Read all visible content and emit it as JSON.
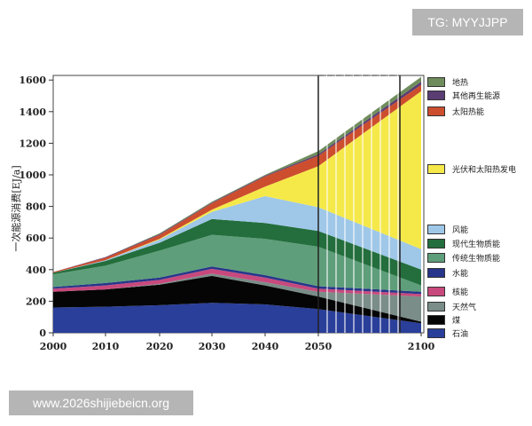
{
  "watermark_top": "TG: MYYJJPP",
  "watermark_bottom": "www.2026shijiebeicn.org",
  "chart_data": {
    "type": "area",
    "stacked": true,
    "title": "",
    "ylabel": "一次能源消费[EJ/a]",
    "xlabel": "",
    "x": [
      2000,
      2010,
      2020,
      2030,
      2040,
      2050,
      2100
    ],
    "x_ticks": [
      "2000",
      "2010",
      "2020",
      "2030",
      "2040",
      "2050",
      "2100"
    ],
    "ylim": [
      0,
      1600
    ],
    "y_ticks": [
      "0",
      "200",
      "400",
      "600",
      "800",
      "1000",
      "1200",
      "1400",
      "1600"
    ],
    "series": [
      {
        "name": "石油",
        "color": "#2a3f9a",
        "values": [
          160,
          165,
          175,
          190,
          180,
          150,
          60
        ]
      },
      {
        "name": "煤",
        "color": "#050505",
        "values": [
          100,
          110,
          130,
          170,
          120,
          80,
          10
        ]
      },
      {
        "name": "天然气",
        "color": "#7a8d88",
        "values": [
          0,
          0,
          5,
          15,
          20,
          30,
          160
        ]
      },
      {
        "name": "核能",
        "color": "#c8497d",
        "values": [
          20,
          25,
          25,
          30,
          30,
          20,
          15
        ]
      },
      {
        "name": "水能",
        "color": "#27368a",
        "values": [
          10,
          15,
          15,
          15,
          15,
          15,
          15
        ]
      },
      {
        "name": "传统生物质能",
        "color": "#5e9e7a",
        "values": [
          80,
          110,
          170,
          200,
          230,
          250,
          40
        ]
      },
      {
        "name": "现代生物质能",
        "color": "#236e3c",
        "values": [
          10,
          30,
          50,
          100,
          100,
          100,
          100
        ]
      },
      {
        "name": "风能",
        "color": "#9fc7e8",
        "values": [
          0,
          5,
          20,
          45,
          170,
          150,
          130
        ]
      },
      {
        "name": "光伏和太阳热发电",
        "color": "#f5e94a",
        "values": [
          0,
          0,
          5,
          15,
          60,
          260,
          1000
        ]
      },
      {
        "name": "太阳热能",
        "color": "#cc4e2e",
        "values": [
          5,
          15,
          25,
          40,
          65,
          65,
          40
        ]
      },
      {
        "name": "其他再生能源",
        "color": "#5a3d73",
        "values": [
          0,
          5,
          5,
          5,
          5,
          10,
          20
        ]
      },
      {
        "name": "地热",
        "color": "#6f8d5c",
        "values": [
          0,
          0,
          5,
          5,
          5,
          20,
          30
        ]
      }
    ],
    "legend": [
      {
        "label": "地热",
        "color": "#6f8d5c"
      },
      {
        "label": "其他再生能源",
        "color": "#5a3d73"
      },
      {
        "label": "太阳热能",
        "color": "#cc4e2e"
      },
      {
        "label": "光伏和太阳热发电",
        "color": "#f5e94a"
      },
      {
        "label": "风能",
        "color": "#9fc7e8"
      },
      {
        "label": "现代生物质能",
        "color": "#236e3c"
      },
      {
        "label": "传统生物质能",
        "color": "#5e9e7a"
      },
      {
        "label": "水能",
        "color": "#27368a"
      },
      {
        "label": "核能",
        "color": "#c8497d"
      },
      {
        "label": "天然气",
        "color": "#7a8d88"
      },
      {
        "label": "煤",
        "color": "#050505"
      },
      {
        "label": "石油",
        "color": "#2a3f9a"
      }
    ]
  }
}
